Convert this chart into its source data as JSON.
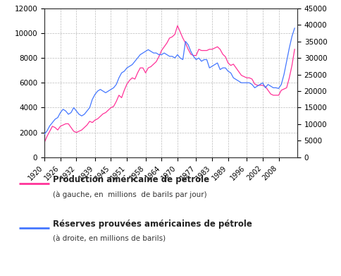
{
  "left_ylim": [
    0,
    12000
  ],
  "right_ylim": [
    0,
    45000
  ],
  "left_yticks": [
    0,
    2000,
    4000,
    6000,
    8000,
    10000,
    12000
  ],
  "right_yticks": [
    0,
    5000,
    10000,
    15000,
    20000,
    25000,
    30000,
    35000,
    40000,
    45000
  ],
  "xticks": [
    1920,
    1926,
    1932,
    1939,
    1945,
    1951,
    1958,
    1964,
    1970,
    1977,
    1983,
    1989,
    1996,
    2002,
    2008
  ],
  "xlim": [
    1920,
    2015
  ],
  "production_color": "#FF3399",
  "reserves_color": "#4477FF",
  "legend_production": "Production américaine de pétrole",
  "legend_production_sub": "(à gauche, en  millions  de barils par jour)",
  "legend_reserves": "Réserves prouvées américaines de pétrole",
  "legend_reserves_sub": "(à droite, en millions de barils)",
  "background_color": "#FFFFFF",
  "grid_color": "#BBBBBB",
  "prod_data": {
    "1920": 1200,
    "1921": 1700,
    "1922": 2100,
    "1923": 2500,
    "1924": 2400,
    "1925": 2200,
    "1926": 2500,
    "1927": 2600,
    "1928": 2700,
    "1929": 2700,
    "1930": 2400,
    "1931": 2100,
    "1932": 2000,
    "1933": 2100,
    "1934": 2200,
    "1935": 2400,
    "1936": 2600,
    "1937": 2900,
    "1938": 2800,
    "1939": 3000,
    "1940": 3100,
    "1941": 3300,
    "1942": 3500,
    "1943": 3600,
    "1944": 3800,
    "1945": 4000,
    "1946": 4100,
    "1947": 4500,
    "1948": 5000,
    "1949": 4800,
    "1950": 5400,
    "1951": 5900,
    "1952": 6200,
    "1953": 6400,
    "1954": 6300,
    "1955": 6800,
    "1956": 7200,
    "1957": 7200,
    "1958": 6800,
    "1959": 7200,
    "1960": 7300,
    "1961": 7500,
    "1962": 7700,
    "1963": 8100,
    "1964": 8600,
    "1965": 8900,
    "1966": 9200,
    "1967": 9600,
    "1968": 9700,
    "1969": 9900,
    "1970": 10600,
    "1971": 10100,
    "1972": 9600,
    "1973": 9200,
    "1974": 8700,
    "1975": 8300,
    "1976": 8200,
    "1977": 8200,
    "1978": 8700,
    "1979": 8600,
    "1980": 8600,
    "1981": 8600,
    "1982": 8700,
    "1983": 8700,
    "1984": 8800,
    "1985": 8900,
    "1986": 8700,
    "1987": 8300,
    "1988": 8100,
    "1989": 7600,
    "1990": 7400,
    "1991": 7500,
    "1992": 7200,
    "1993": 6900,
    "1994": 6600,
    "1995": 6500,
    "1996": 6400,
    "1997": 6400,
    "1998": 6300,
    "1999": 5900,
    "2000": 5800,
    "2001": 5800,
    "2002": 5800,
    "2003": 5700,
    "2004": 5400,
    "2005": 5100,
    "2006": 5000,
    "2007": 5000,
    "2008": 5000,
    "2009": 5400,
    "2010": 5500,
    "2011": 5600,
    "2012": 6400,
    "2013": 7400,
    "2014": 8700
  },
  "res_data": {
    "1920": 7000,
    "1921": 8000,
    "1922": 9500,
    "1923": 10500,
    "1924": 11500,
    "1925": 12000,
    "1926": 13500,
    "1927": 14500,
    "1928": 14000,
    "1929": 13000,
    "1930": 13500,
    "1931": 15000,
    "1932": 14000,
    "1933": 13000,
    "1934": 12500,
    "1935": 13000,
    "1936": 14000,
    "1937": 15000,
    "1938": 17500,
    "1939": 19000,
    "1940": 20000,
    "1941": 20500,
    "1942": 20000,
    "1943": 19500,
    "1944": 20000,
    "1945": 20500,
    "1946": 21000,
    "1947": 22000,
    "1948": 24000,
    "1949": 25500,
    "1950": 26000,
    "1951": 27000,
    "1952": 27500,
    "1953": 28000,
    "1954": 29000,
    "1955": 30000,
    "1956": 31000,
    "1957": 31500,
    "1958": 32000,
    "1959": 32500,
    "1960": 32000,
    "1961": 31500,
    "1962": 31500,
    "1963": 31000,
    "1964": 31000,
    "1965": 31500,
    "1966": 31000,
    "1967": 30500,
    "1968": 30500,
    "1969": 30000,
    "1970": 31000,
    "1971": 30000,
    "1972": 29500,
    "1973": 35000,
    "1974": 34000,
    "1975": 32000,
    "1976": 30500,
    "1977": 29500,
    "1978": 30000,
    "1979": 29000,
    "1980": 29500,
    "1981": 29500,
    "1982": 27000,
    "1983": 27500,
    "1984": 28000,
    "1985": 28500,
    "1986": 26500,
    "1987": 27000,
    "1988": 27000,
    "1989": 26000,
    "1990": 25500,
    "1991": 24000,
    "1992": 23500,
    "1993": 23000,
    "1994": 22500,
    "1995": 22500,
    "1996": 22500,
    "1997": 22500,
    "1998": 22000,
    "1999": 21000,
    "2000": 21500,
    "2001": 22000,
    "2002": 22500,
    "2003": 21000,
    "2004": 22000,
    "2005": 21500,
    "2006": 21000,
    "2007": 21000,
    "2008": 20800,
    "2009": 22000,
    "2010": 25000,
    "2011": 29000,
    "2012": 33000,
    "2013": 36500,
    "2014": 39000
  }
}
